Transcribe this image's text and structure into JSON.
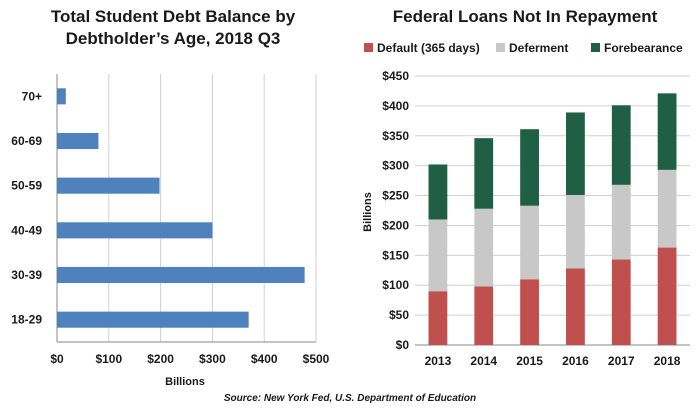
{
  "chart_data": [
    {
      "type": "bar",
      "orientation": "horizontal",
      "title": "Total Student Debt Balance by Debtholder’s Age, 2018 Q3",
      "title_lines": [
        "Total Student Debt Balance by",
        "Debtholder’s Age, 2018 Q3"
      ],
      "categories": [
        "70+",
        "60-69",
        "50-59",
        "40-49",
        "30-39",
        "18-29"
      ],
      "values": [
        17,
        80,
        198,
        300,
        478,
        370
      ],
      "xlabel": "Billions",
      "ylabel": "",
      "xlim": [
        0,
        500
      ],
      "xticks": [
        0,
        100,
        200,
        300,
        400,
        500
      ],
      "xtick_labels": [
        "$0",
        "$100",
        "$200",
        "$300",
        "$400",
        "$500"
      ],
      "grid": "vertical",
      "color": "#4f81bd"
    },
    {
      "type": "bar",
      "stacked": true,
      "title": "Federal Loans Not In Repayment",
      "categories": [
        "2013",
        "2014",
        "2015",
        "2016",
        "2017",
        "2018"
      ],
      "series": [
        {
          "name": "Default (365 days)",
          "color": "#c0504d",
          "values": [
            90,
            98,
            110,
            128,
            143,
            163
          ]
        },
        {
          "name": "Deferment",
          "color": "#c8c8c8",
          "values": [
            120,
            130,
            123,
            123,
            125,
            130
          ]
        },
        {
          "name": "Forebearance",
          "color": "#1e5f46",
          "values": [
            92,
            118,
            128,
            138,
            133,
            128
          ]
        }
      ],
      "xlabel": "",
      "ylabel": "Billions",
      "ylim": [
        0,
        450
      ],
      "yticks": [
        0,
        50,
        100,
        150,
        200,
        250,
        300,
        350,
        400,
        450
      ],
      "ytick_labels": [
        "$0",
        "$50",
        "$100",
        "$150",
        "$200",
        "$250",
        "$300",
        "$350",
        "$400",
        "$450"
      ],
      "grid": "horizontal",
      "legend": "top"
    }
  ],
  "source": "Source: New York Fed, U.S. Department of Education"
}
